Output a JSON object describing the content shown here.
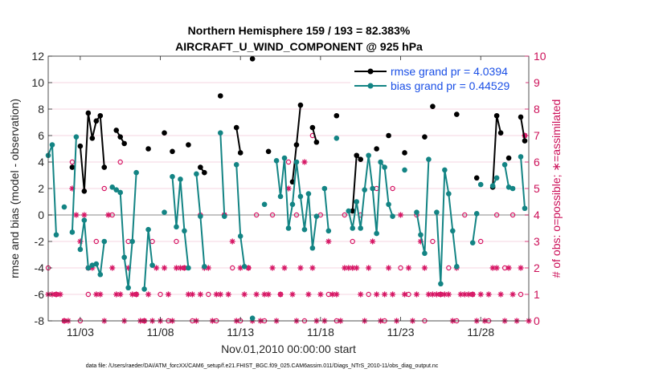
{
  "chart_data": {
    "type": "line",
    "title_line1": "Northern Hemisphere 159 / 193 = 82.383%",
    "title_line2": "AIRCRAFT_U_WIND_COMPONENT @ 925 hPa",
    "xlabel": "Nov.01,2010 00:00:00 start",
    "ylabel": "rmse and bias (model - observation)",
    "y2label": "# of obs: o=possible; ∗=assimilated",
    "xlim": [
      0,
      30
    ],
    "ylim": [
      -8,
      12
    ],
    "y2lim": [
      0,
      10
    ],
    "x_tick_labels": [
      "11/03",
      "11/08",
      "11/13",
      "11/18",
      "11/23",
      "11/28"
    ],
    "x_tick_values": [
      2,
      7,
      12,
      17,
      22,
      27
    ],
    "y_ticks": [
      -8,
      -6,
      -4,
      -2,
      0,
      2,
      4,
      6,
      8,
      10,
      12
    ],
    "y2_ticks": [
      0,
      1,
      2,
      3,
      4,
      5,
      6,
      7,
      8,
      9,
      10
    ],
    "footnote": "data file: /Users/raeder/DAI/ATM_forcXX/CAM6_setup/f.e21.FHIST_BGC.f09_025.CAM6assim.011/Diags_NTrS_2010-11/obs_diag_output.nc",
    "colors": {
      "rmse": "#000000",
      "bias": "#138484",
      "obs": "#d61463",
      "zero": "#b0b0b0",
      "grid": "#f0c8d8"
    },
    "series": [
      {
        "name": "rmse grand pr = 4.0394",
        "segments": [
          [
            [
              1.5,
              3.6
            ]
          ],
          [
            [
              2.0,
              5.2
            ],
            [
              2.25,
              1.8
            ],
            [
              2.5,
              7.7
            ],
            [
              2.75,
              5.8
            ],
            [
              3.0,
              7.1
            ],
            [
              3.25,
              7.5
            ],
            [
              3.5,
              3.6
            ]
          ],
          [
            [
              4.25,
              6.4
            ],
            [
              4.5,
              5.9
            ],
            [
              4.75,
              5.4
            ]
          ],
          [
            [
              6.25,
              5.0
            ]
          ],
          [
            [
              7.25,
              6.2
            ]
          ],
          [
            [
              7.75,
              4.8
            ]
          ],
          [
            [
              8.75,
              5.3
            ]
          ],
          [
            [
              9.5,
              3.6
            ],
            [
              9.75,
              3.2
            ]
          ],
          [
            [
              10.75,
              9.0
            ]
          ],
          [
            [
              11.75,
              6.6
            ],
            [
              12.0,
              4.7
            ]
          ],
          [
            [
              12.75,
              11.8
            ]
          ],
          [
            [
              13.75,
              4.8
            ]
          ],
          [
            [
              15.25,
              2.5
            ],
            [
              15.5,
              5.3
            ],
            [
              15.75,
              8.3
            ]
          ],
          [
            [
              16.5,
              6.6
            ],
            [
              16.75,
              5.5
            ]
          ],
          [
            [
              18.0,
              7.5
            ]
          ],
          [
            [
              19.0,
              0.3
            ],
            [
              19.25,
              4.5
            ],
            [
              19.5,
              4.2
            ]
          ],
          [
            [
              20.5,
              5.0
            ]
          ],
          [
            [
              21.25,
              6.0
            ]
          ],
          [
            [
              22.25,
              4.7
            ]
          ],
          [
            [
              23.5,
              5.9
            ]
          ],
          [
            [
              24.0,
              8.2
            ]
          ],
          [
            [
              25.5,
              7.6
            ]
          ],
          [
            [
              26.75,
              2.8
            ]
          ],
          [
            [
              27.75,
              2.1
            ],
            [
              28.0,
              7.5
            ],
            [
              28.25,
              6.2
            ]
          ],
          [
            [
              28.75,
              4.3
            ]
          ],
          [
            [
              29.5,
              7.4
            ],
            [
              29.75,
              5.6
            ]
          ]
        ]
      },
      {
        "name": "bias grand pr = 0.44529",
        "segments": [
          [
            [
              0.0,
              4.5
            ],
            [
              0.25,
              5.3
            ],
            [
              0.5,
              -1.5
            ]
          ],
          [
            [
              1.0,
              0.6
            ]
          ],
          [
            [
              1.5,
              -1.3
            ],
            [
              1.75,
              5.9
            ]
          ],
          [
            [
              2.0,
              -2.6
            ],
            [
              2.25,
              -0.4
            ],
            [
              2.5,
              -4.0
            ],
            [
              2.75,
              -3.8
            ],
            [
              3.0,
              -3.7
            ],
            [
              3.25,
              -4.5
            ],
            [
              3.5,
              -2.0
            ]
          ],
          [
            [
              4.0,
              2.1
            ],
            [
              4.25,
              1.9
            ],
            [
              4.5,
              1.7
            ],
            [
              4.75,
              -3.2
            ],
            [
              5.0,
              -5.5
            ],
            [
              5.25,
              -2.0
            ],
            [
              5.5,
              3.2
            ]
          ],
          [
            [
              6.0,
              -5.6
            ],
            [
              6.25,
              -1.1
            ],
            [
              6.5,
              -3.8
            ]
          ],
          [
            [
              7.25,
              0.2
            ]
          ],
          [
            [
              7.75,
              2.9
            ],
            [
              8.0,
              -0.9
            ],
            [
              8.25,
              2.7
            ],
            [
              8.5,
              -1.2
            ],
            [
              8.75,
              -4.0
            ]
          ],
          [
            [
              9.25,
              3.1
            ],
            [
              9.5,
              -0.1
            ],
            [
              9.75,
              -3.9
            ]
          ],
          [
            [
              10.75,
              6.2
            ],
            [
              11.0,
              -0.1
            ]
          ],
          [
            [
              11.75,
              3.8
            ],
            [
              12.0,
              -1.6
            ],
            [
              12.25,
              -3.9
            ]
          ],
          [
            [
              12.75,
              -7.8
            ]
          ],
          [
            [
              13.5,
              0.8
            ]
          ],
          [
            [
              14.25,
              4.1
            ],
            [
              14.5,
              1.4
            ],
            [
              14.75,
              4.3
            ],
            [
              15.0,
              -1.0
            ],
            [
              15.25,
              0.8
            ],
            [
              15.5,
              4.0
            ],
            [
              15.75,
              1.4
            ],
            [
              16.0,
              -1.1
            ],
            [
              16.25,
              1.6
            ],
            [
              16.5,
              -2.5
            ],
            [
              16.75,
              -0.1
            ]
          ],
          [
            [
              17.25,
              2.0
            ],
            [
              17.5,
              -1.2
            ]
          ],
          [
            [
              18.0,
              5.8
            ]
          ],
          [
            [
              18.75,
              0.3
            ],
            [
              19.0,
              -1.0
            ],
            [
              19.25,
              1.0
            ],
            [
              19.5,
              -1.0
            ],
            [
              19.75,
              1.9
            ],
            [
              20.0,
              4.5
            ],
            [
              20.25,
              2.0
            ],
            [
              20.5,
              -1.4
            ],
            [
              20.75,
              4.0
            ],
            [
              21.0,
              3.6
            ],
            [
              21.25,
              0.8
            ],
            [
              21.5,
              -0.1
            ]
          ],
          [
            [
              22.25,
              3.4
            ]
          ],
          [
            [
              23.0,
              0.2
            ],
            [
              23.25,
              -1.5
            ],
            [
              23.5,
              -2.9
            ],
            [
              23.75,
              4.2
            ]
          ],
          [
            [
              24.25,
              0.2
            ],
            [
              24.5,
              -5.2
            ],
            [
              24.75,
              3.4
            ],
            [
              25.0,
              1.6
            ],
            [
              25.25,
              -1.2
            ],
            [
              25.5,
              -3.9
            ]
          ],
          [
            [
              26.5,
              -2.1
            ],
            [
              26.75,
              0.1
            ]
          ],
          [
            [
              27.0,
              2.3
            ]
          ],
          [
            [
              27.75,
              2.2
            ],
            [
              28.0,
              2.8
            ]
          ],
          [
            [
              28.5,
              3.8
            ],
            [
              28.75,
              2.1
            ],
            [
              29.0,
              2.0
            ]
          ],
          [
            [
              29.5,
              4.4
            ],
            [
              29.75,
              0.5
            ]
          ]
        ]
      }
    ],
    "obs_possible": [
      [
        0.0,
        2
      ],
      [
        0.5,
        1
      ],
      [
        1.0,
        0
      ],
      [
        1.5,
        6
      ],
      [
        2.0,
        0
      ],
      [
        2.5,
        1
      ],
      [
        3.0,
        3
      ],
      [
        3.5,
        5
      ],
      [
        4.0,
        4
      ],
      [
        4.5,
        6
      ],
      [
        5.0,
        3
      ],
      [
        5.5,
        1
      ],
      [
        6.0,
        0
      ],
      [
        6.5,
        3
      ],
      [
        7.0,
        1
      ],
      [
        7.5,
        0
      ],
      [
        8.0,
        3
      ],
      [
        8.5,
        2
      ],
      [
        9.0,
        0
      ],
      [
        9.5,
        4
      ],
      [
        10.0,
        1
      ],
      [
        10.5,
        0
      ],
      [
        11.0,
        4
      ],
      [
        11.5,
        2
      ],
      [
        12.0,
        0
      ],
      [
        12.5,
        2
      ],
      [
        13.0,
        4
      ],
      [
        13.5,
        0
      ],
      [
        14.0,
        4
      ],
      [
        14.5,
        1
      ],
      [
        15.0,
        6
      ],
      [
        15.5,
        4
      ],
      [
        16.0,
        0
      ],
      [
        16.5,
        7
      ],
      [
        17.0,
        4
      ],
      [
        17.5,
        1
      ],
      [
        18.0,
        0
      ],
      [
        18.5,
        4
      ],
      [
        19.0,
        3
      ],
      [
        19.5,
        4
      ],
      [
        20.0,
        1
      ],
      [
        20.5,
        5
      ],
      [
        21.0,
        0
      ],
      [
        21.5,
        5
      ],
      [
        22.0,
        2
      ],
      [
        22.5,
        1
      ],
      [
        23.0,
        4
      ],
      [
        23.5,
        0
      ],
      [
        24.0,
        3
      ],
      [
        24.5,
        1
      ],
      [
        25.0,
        2
      ],
      [
        25.5,
        0
      ],
      [
        26.0,
        4
      ],
      [
        26.5,
        1
      ],
      [
        27.0,
        3
      ],
      [
        27.5,
        0
      ],
      [
        28.0,
        4
      ],
      [
        28.5,
        2
      ],
      [
        29.0,
        4
      ],
      [
        29.5,
        1
      ],
      [
        29.75,
        7
      ]
    ],
    "obs_assimilated": [
      [
        0.0,
        1
      ],
      [
        0.25,
        1
      ],
      [
        0.5,
        1
      ],
      [
        0.75,
        1
      ],
      [
        1.0,
        0
      ],
      [
        1.25,
        0
      ],
      [
        1.5,
        5
      ],
      [
        1.75,
        4
      ],
      [
        2.0,
        3
      ],
      [
        2.25,
        4
      ],
      [
        2.5,
        2
      ],
      [
        2.75,
        2
      ],
      [
        3.0,
        1
      ],
      [
        3.25,
        1
      ],
      [
        3.5,
        0
      ],
      [
        3.75,
        4
      ],
      [
        4.0,
        2
      ],
      [
        4.25,
        1
      ],
      [
        4.5,
        1
      ],
      [
        4.75,
        0
      ],
      [
        5.0,
        2
      ],
      [
        5.25,
        1
      ],
      [
        5.5,
        1
      ],
      [
        5.75,
        0
      ],
      [
        6.0,
        0
      ],
      [
        6.25,
        1
      ],
      [
        6.5,
        0
      ],
      [
        6.75,
        2
      ],
      [
        7.0,
        0
      ],
      [
        7.25,
        2
      ],
      [
        7.5,
        1
      ],
      [
        7.75,
        0
      ],
      [
        8.0,
        2
      ],
      [
        8.25,
        2
      ],
      [
        8.5,
        2
      ],
      [
        8.75,
        1
      ],
      [
        9.0,
        1
      ],
      [
        9.25,
        0
      ],
      [
        9.5,
        1
      ],
      [
        9.75,
        2
      ],
      [
        10.0,
        2
      ],
      [
        10.25,
        0
      ],
      [
        10.5,
        1
      ],
      [
        10.75,
        1
      ],
      [
        11.0,
        4
      ],
      [
        11.25,
        1
      ],
      [
        11.5,
        3
      ],
      [
        11.75,
        0
      ],
      [
        12.0,
        2
      ],
      [
        12.25,
        1
      ],
      [
        12.5,
        2
      ],
      [
        12.75,
        0
      ],
      [
        13.0,
        1
      ],
      [
        13.25,
        0
      ],
      [
        13.5,
        1
      ],
      [
        13.75,
        1
      ],
      [
        14.0,
        2
      ],
      [
        14.25,
        0
      ],
      [
        14.5,
        1
      ],
      [
        14.75,
        2
      ],
      [
        15.0,
        5
      ],
      [
        15.25,
        1
      ],
      [
        15.5,
        0
      ],
      [
        15.75,
        2
      ],
      [
        16.0,
        6
      ],
      [
        16.25,
        1
      ],
      [
        16.5,
        2
      ],
      [
        16.75,
        0
      ],
      [
        17.0,
        1
      ],
      [
        17.25,
        0
      ],
      [
        17.5,
        3
      ],
      [
        17.75,
        1
      ],
      [
        18.0,
        1
      ],
      [
        18.25,
        0
      ],
      [
        18.5,
        2
      ],
      [
        18.75,
        2
      ],
      [
        19.0,
        2
      ],
      [
        19.25,
        2
      ],
      [
        19.5,
        1
      ],
      [
        19.75,
        0
      ],
      [
        20.0,
        2
      ],
      [
        20.25,
        3
      ],
      [
        20.5,
        1
      ],
      [
        20.75,
        0
      ],
      [
        21.0,
        1
      ],
      [
        21.25,
        2
      ],
      [
        21.5,
        1
      ],
      [
        21.75,
        0
      ],
      [
        22.0,
        4
      ],
      [
        22.25,
        1
      ],
      [
        22.5,
        2
      ],
      [
        22.75,
        0
      ],
      [
        23.0,
        1
      ],
      [
        23.25,
        3
      ],
      [
        23.5,
        2
      ],
      [
        23.75,
        1
      ],
      [
        24.0,
        1
      ],
      [
        24.25,
        1
      ],
      [
        24.5,
        1
      ],
      [
        24.75,
        1
      ],
      [
        25.0,
        1
      ],
      [
        25.25,
        0
      ],
      [
        25.5,
        2
      ],
      [
        25.75,
        1
      ],
      [
        26.0,
        1
      ],
      [
        26.25,
        1
      ],
      [
        26.5,
        1
      ],
      [
        26.75,
        0
      ],
      [
        27.0,
        1
      ],
      [
        27.25,
        0
      ],
      [
        27.5,
        1
      ],
      [
        27.75,
        2
      ],
      [
        28.0,
        2
      ],
      [
        28.25,
        1
      ],
      [
        28.5,
        0
      ],
      [
        28.75,
        2
      ],
      [
        29.0,
        1
      ],
      [
        29.25,
        0
      ],
      [
        29.5,
        2
      ],
      [
        29.75,
        7
      ],
      [
        30.0,
        0
      ]
    ]
  }
}
